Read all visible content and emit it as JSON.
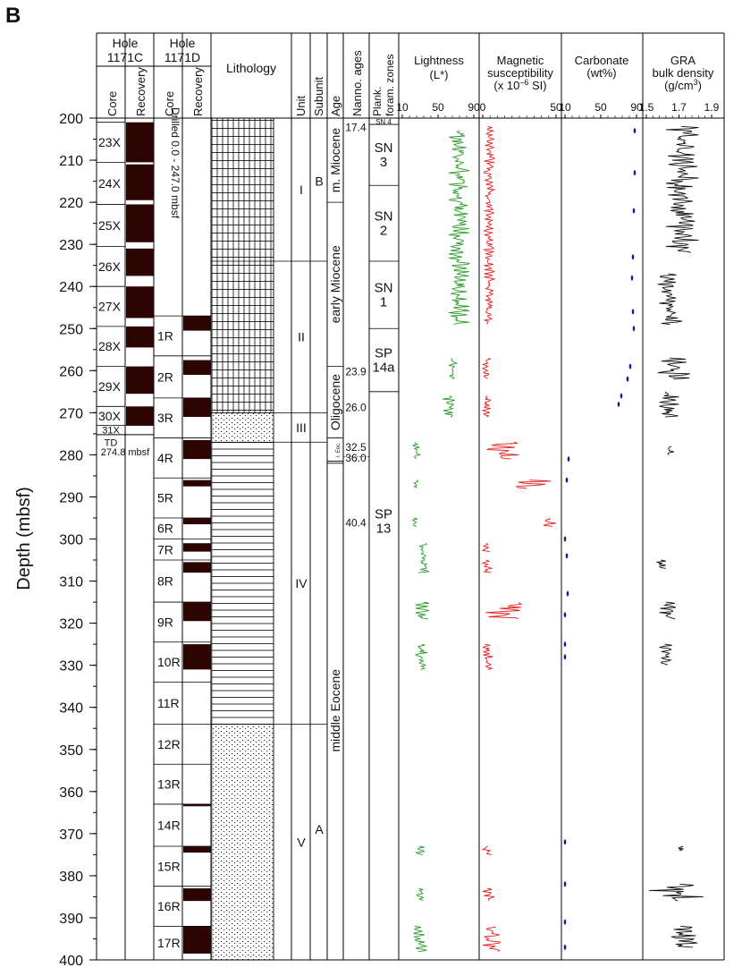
{
  "panel_label": "B",
  "y_axis": {
    "label": "Depth (mbsf)",
    "ticks": [
      200,
      210,
      220,
      230,
      240,
      250,
      260,
      270,
      280,
      290,
      300,
      310,
      320,
      330,
      340,
      350,
      360,
      370,
      380,
      390,
      400
    ],
    "range": [
      200,
      400
    ]
  },
  "headers": {
    "hole_c": [
      "Hole",
      "1171C"
    ],
    "hole_d": [
      "Hole",
      "1171D"
    ],
    "core": "Core",
    "recovery": "Recovery",
    "lithology": "Lithology",
    "unit": "Unit",
    "subunit": "Subunit",
    "age": "Age",
    "nanno": "Nanno. ages",
    "plank": [
      "Plank.",
      "foram. zones"
    ],
    "lightness": [
      "Lightness",
      "(L*)"
    ],
    "magsus": [
      "Magnetic",
      "susceptibility",
      "(x 10",
      "–6",
      " SI)"
    ],
    "carbonate": [
      "Carbonate",
      "(wt%)"
    ],
    "gra": [
      "GRA",
      "bulk density",
      "(g/cm",
      "3",
      ")"
    ]
  },
  "scales": {
    "lightness": {
      "ticks": [
        "10",
        "50",
        "90"
      ],
      "range": [
        10,
        90
      ]
    },
    "magsus": {
      "ticks": [
        "0",
        "50"
      ],
      "range": [
        0,
        50
      ]
    },
    "carbonate": {
      "ticks": [
        "10",
        "50",
        "90"
      ],
      "range": [
        10,
        90
      ]
    },
    "gra": {
      "ticks": [
        "1.5",
        "1.7",
        "1.9"
      ],
      "range": [
        1.5,
        1.9
      ]
    }
  },
  "hole_c": {
    "drilled_text": "",
    "cores": [
      {
        "label": "23X",
        "top": 201,
        "bot": 210.5,
        "rec": [
          201,
          210.5
        ]
      },
      {
        "label": "24X",
        "top": 210.5,
        "bot": 220.5,
        "rec": [
          211,
          219.5
        ]
      },
      {
        "label": "25X",
        "top": 220.5,
        "bot": 230.5,
        "rec": [
          220.5,
          229.5
        ]
      },
      {
        "label": "26X",
        "top": 230.5,
        "bot": 240,
        "rec": [
          231,
          237.5
        ]
      },
      {
        "label": "27X",
        "top": 240,
        "bot": 249.5,
        "rec": [
          240,
          247.5
        ]
      },
      {
        "label": "28X",
        "top": 249.5,
        "bot": 259,
        "rec": [
          249.5,
          254.5
        ]
      },
      {
        "label": "29X",
        "top": 259,
        "bot": 268.5,
        "rec": [
          259,
          265.5
        ]
      },
      {
        "label": "30X",
        "top": 268.5,
        "bot": 273,
        "rec": [
          268.5,
          273
        ]
      }
    ],
    "extra_core": "31X",
    "td_label": "TD",
    "td_depth": "274.8 mbsf"
  },
  "hole_d": {
    "drilled_text": "Drilled 0.0 - 247.0 mbsf",
    "cores": [
      {
        "label": "1R",
        "top": 247,
        "bot": 256.5,
        "rec": [
          247,
          250.5
        ]
      },
      {
        "label": "2R",
        "top": 256.5,
        "bot": 266.5,
        "rec": [
          257.5,
          261
        ]
      },
      {
        "label": "3R",
        "top": 266.5,
        "bot": 276,
        "rec": [
          266.5,
          271
        ]
      },
      {
        "label": "4R",
        "top": 276,
        "bot": 285.5,
        "rec": [
          276.5,
          281
        ]
      },
      {
        "label": "5R",
        "top": 285.5,
        "bot": 295,
        "rec": [
          286,
          287.5
        ]
      },
      {
        "label": "6R",
        "top": 295,
        "bot": 300,
        "rec": [
          295,
          296.5
        ]
      },
      {
        "label": "7R",
        "top": 300,
        "bot": 305,
        "rec": [
          301,
          303
        ]
      },
      {
        "label": "8R",
        "top": 305,
        "bot": 315,
        "rec": [
          305.5,
          308
        ]
      },
      {
        "label": "9R",
        "top": 315,
        "bot": 324.5,
        "rec": [
          315,
          319.5
        ]
      },
      {
        "label": "10R",
        "top": 324.5,
        "bot": 334,
        "rec": [
          325,
          331
        ]
      },
      {
        "label": "11R",
        "top": 334,
        "bot": 344,
        "rec": []
      },
      {
        "label": "12R",
        "top": 344,
        "bot": 353.5,
        "rec": []
      },
      {
        "label": "13R",
        "top": 353.5,
        "bot": 363,
        "rec": []
      },
      {
        "label": "14R",
        "top": 363,
        "bot": 373,
        "rec": [
          363,
          363.5
        ]
      },
      {
        "label": "15R",
        "top": 373,
        "bot": 382.5,
        "rec": [
          373,
          374.5
        ]
      },
      {
        "label": "16R",
        "top": 382.5,
        "bot": 392,
        "rec": [
          383,
          386
        ]
      },
      {
        "label": "17R",
        "top": 392,
        "bot": 400,
        "rec": [
          392,
          398.5
        ]
      }
    ]
  },
  "lithology_bands": [
    {
      "type": "ladder",
      "top": 200,
      "bot": 270
    },
    {
      "type": "dots",
      "top": 270,
      "bot": 277
    },
    {
      "type": "dashes",
      "top": 277,
      "bot": 344
    },
    {
      "type": "dots",
      "top": 344,
      "bot": 400
    }
  ],
  "units": [
    {
      "label": "I",
      "top": 200,
      "bot": 234
    },
    {
      "label": "II",
      "top": 234,
      "bot": 270
    },
    {
      "label": "III",
      "top": 270,
      "bot": 277
    },
    {
      "label": "IV",
      "top": 277,
      "bot": 344
    },
    {
      "label": "V",
      "top": 344,
      "bot": 400
    }
  ],
  "subunits": [
    {
      "label": "B",
      "at": 215
    },
    {
      "label": "A",
      "at": 369
    }
  ],
  "ages": [
    {
      "label": "m. Miocene",
      "top": 200,
      "bot": 220
    },
    {
      "label": "early Miocene",
      "top": 220,
      "bot": 259
    },
    {
      "label": "Oligocene",
      "top": 259,
      "bot": 276
    },
    {
      "label": "l. Eoc.",
      "top": 276,
      "bot": 281.5
    },
    {
      "label": "middle Eocene",
      "top": 281.5,
      "bot": 400
    }
  ],
  "nanno_ages": [
    {
      "label": "17.4",
      "at": 202
    },
    {
      "label": "23.9",
      "at": 260
    },
    {
      "label": "26.0",
      "at": 268.5
    },
    {
      "label": "32.5",
      "at": 278
    },
    {
      "label": "36.0",
      "at": 280.5
    },
    {
      "label": "40.4",
      "at": 296
    }
  ],
  "foram_zones": [
    {
      "label": "SN 4",
      "top": 200,
      "bot": 201.5,
      "small": true
    },
    {
      "label": "SN\n3",
      "top": 201.5,
      "bot": 216
    },
    {
      "label": "SN\n2",
      "top": 216,
      "bot": 234
    },
    {
      "label": "SN\n1",
      "top": 234,
      "bot": 250
    },
    {
      "label": "SP\n14a",
      "top": 250,
      "bot": 265
    },
    {
      "label": "SP\n13",
      "top": 265,
      "bot": 400
    }
  ],
  "colors": {
    "ink": "#111111",
    "recovery": "#2c0503",
    "lightness": "#2a9a2a",
    "magsus": "#e02020",
    "carbonate": "#1a1aa0",
    "gra": "#111111",
    "grid": "#000000"
  },
  "chart_data": {
    "type": "line",
    "title": "",
    "ylabel": "Depth (mbsf)",
    "ylim": [
      200,
      400
    ],
    "series": [
      {
        "name": "Lightness (L*)",
        "xlim": [
          10,
          90
        ],
        "segments": [
          {
            "top": 203,
            "bot": 249,
            "min": 62,
            "max": 85
          },
          {
            "top": 257,
            "bot": 262,
            "min": 60,
            "max": 72
          },
          {
            "top": 266,
            "bot": 271,
            "min": 55,
            "max": 70
          },
          {
            "top": 277,
            "bot": 281,
            "min": 22,
            "max": 30
          },
          {
            "top": 286,
            "bot": 288,
            "min": 22,
            "max": 28
          },
          {
            "top": 295,
            "bot": 297,
            "min": 20,
            "max": 27
          },
          {
            "top": 301,
            "bot": 308,
            "min": 28,
            "max": 40
          },
          {
            "top": 315,
            "bot": 319,
            "min": 25,
            "max": 40
          },
          {
            "top": 325,
            "bot": 331,
            "min": 25,
            "max": 38
          },
          {
            "top": 373,
            "bot": 375,
            "min": 25,
            "max": 35
          },
          {
            "top": 383,
            "bot": 386,
            "min": 25,
            "max": 35
          },
          {
            "top": 392,
            "bot": 398,
            "min": 20,
            "max": 38
          }
        ]
      },
      {
        "name": "Magnetic susceptibility (x 10–6 SI)",
        "xlim": [
          0,
          50
        ],
        "segments": [
          {
            "top": 202,
            "bot": 249,
            "min": 1,
            "max": 8
          },
          {
            "top": 257,
            "bot": 262,
            "min": 0,
            "max": 5
          },
          {
            "top": 266,
            "bot": 271,
            "min": 0,
            "max": 6
          },
          {
            "top": 277,
            "bot": 281,
            "min": 2,
            "max": 28
          },
          {
            "top": 286,
            "bot": 288,
            "min": 15,
            "max": 48
          },
          {
            "top": 295,
            "bot": 297,
            "min": 40,
            "max": 50
          },
          {
            "top": 301,
            "bot": 303,
            "min": 0,
            "max": 5
          },
          {
            "top": 305,
            "bot": 308,
            "min": 0,
            "max": 6
          },
          {
            "top": 315,
            "bot": 319,
            "min": 2,
            "max": 38
          },
          {
            "top": 325,
            "bot": 331,
            "min": 0,
            "max": 7
          },
          {
            "top": 373,
            "bot": 375,
            "min": 0,
            "max": 6
          },
          {
            "top": 383,
            "bot": 386,
            "min": 0,
            "max": 8
          },
          {
            "top": 392,
            "bot": 398,
            "min": 0,
            "max": 14
          }
        ]
      },
      {
        "name": "Carbonate (wt%)",
        "xlim": [
          10,
          90
        ],
        "points": [
          [
            88,
            203
          ],
          [
            88,
            213
          ],
          [
            87,
            222
          ],
          [
            86,
            233
          ],
          [
            85,
            238
          ],
          [
            86,
            246
          ],
          [
            87,
            250
          ],
          [
            83,
            259
          ],
          [
            80,
            262
          ],
          [
            73,
            266
          ],
          [
            70,
            268
          ],
          [
            14,
            281
          ],
          [
            12,
            286
          ],
          [
            10,
            300
          ],
          [
            12,
            304
          ],
          [
            13,
            313
          ],
          [
            10,
            318
          ],
          [
            10,
            325
          ],
          [
            10,
            328
          ],
          [
            10,
            372
          ],
          [
            10,
            382
          ],
          [
            10,
            391
          ],
          [
            10,
            397
          ]
        ]
      },
      {
        "name": "GRA bulk density (g/cm3)",
        "xlim": [
          1.5,
          1.9
        ],
        "segments": [
          {
            "top": 202,
            "bot": 232,
            "min": 1.62,
            "max": 1.82
          },
          {
            "top": 237,
            "bot": 249,
            "min": 1.57,
            "max": 1.72
          },
          {
            "top": 257,
            "bot": 262,
            "min": 1.57,
            "max": 1.78
          },
          {
            "top": 265,
            "bot": 271,
            "min": 1.58,
            "max": 1.7
          },
          {
            "top": 278,
            "bot": 280,
            "min": 1.6,
            "max": 1.68
          },
          {
            "top": 305,
            "bot": 307,
            "min": 1.55,
            "max": 1.62
          },
          {
            "top": 315,
            "bot": 319,
            "min": 1.58,
            "max": 1.68
          },
          {
            "top": 325,
            "bot": 330,
            "min": 1.58,
            "max": 1.66
          },
          {
            "top": 373,
            "bot": 374,
            "min": 1.68,
            "max": 1.74
          },
          {
            "top": 382,
            "bot": 386,
            "min": 1.5,
            "max": 1.85
          },
          {
            "top": 392,
            "bot": 397,
            "min": 1.65,
            "max": 1.82
          }
        ]
      }
    ]
  }
}
